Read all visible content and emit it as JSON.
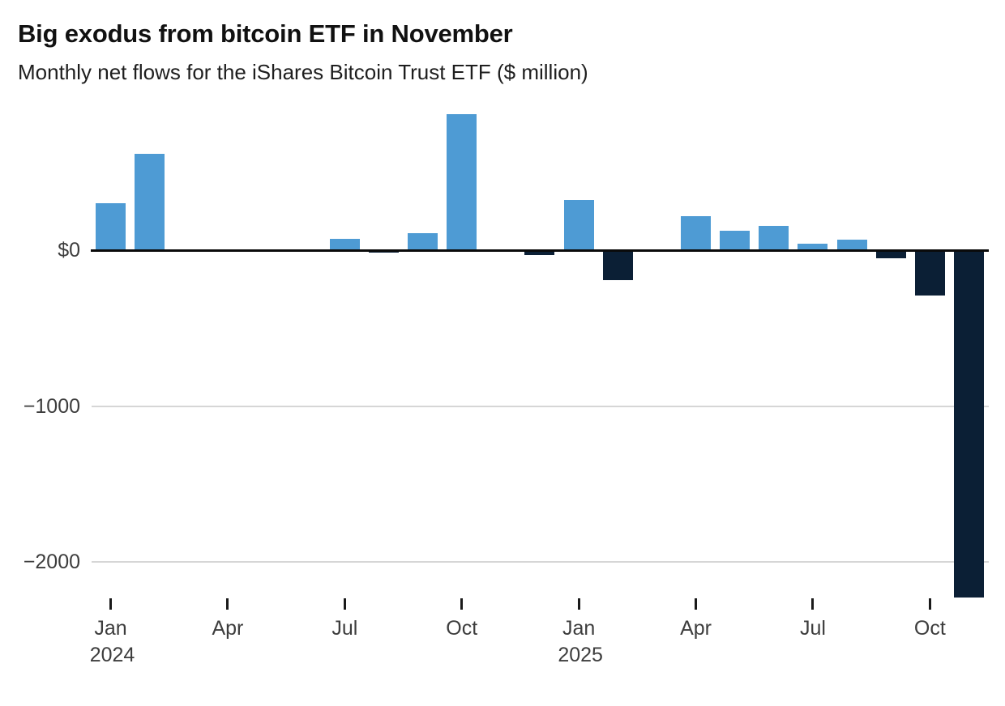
{
  "header": {
    "title": "Big exodus from bitcoin ETF in November",
    "subtitle": "Monthly net flows for the iShares Bitcoin Trust ETF ($ million)"
  },
  "chart_data": {
    "type": "bar",
    "title": "Big exodus from bitcoin ETF in November",
    "subtitle": "Monthly net flows for the iShares Bitcoin Trust ETF ($ million)",
    "unit": "$ million",
    "categories": [
      "Jan 2024",
      "Feb 2024",
      "Mar 2024",
      "Apr 2024",
      "May 2024",
      "Jun 2024",
      "Jul 2024",
      "Aug 2024",
      "Sep 2024",
      "Oct 2024",
      "Nov 2024",
      "Dec 2024",
      "Jan 2025",
      "Feb 2025",
      "Mar 2025",
      "Apr 2025",
      "May 2025",
      "Jun 2025",
      "Jul 2025",
      "Aug 2025",
      "Sep 2025",
      "Oct 2025",
      "Nov 2025"
    ],
    "values": [
      300,
      620,
      0,
      0,
      0,
      0,
      75,
      -15,
      110,
      875,
      0,
      -30,
      320,
      -190,
      0,
      220,
      125,
      155,
      40,
      65,
      -50,
      -290,
      -2230
    ],
    "ylim": [
      -2330,
      900
    ],
    "grid": "horizontal",
    "legend": null,
    "yticks": [
      {
        "value": 0,
        "label": "$0"
      },
      {
        "value": -1000,
        "label": "−1000"
      },
      {
        "value": -2000,
        "label": "−2000"
      }
    ],
    "xticks": [
      {
        "index": 0,
        "label": "Jan",
        "year": "2024"
      },
      {
        "index": 3,
        "label": "Apr",
        "year": ""
      },
      {
        "index": 6,
        "label": "Jul",
        "year": ""
      },
      {
        "index": 9,
        "label": "Oct",
        "year": ""
      },
      {
        "index": 12,
        "label": "Jan",
        "year": "2025"
      },
      {
        "index": 15,
        "label": "Apr",
        "year": ""
      },
      {
        "index": 18,
        "label": "Jul",
        "year": ""
      },
      {
        "index": 21,
        "label": "Oct",
        "year": ""
      }
    ],
    "colors": {
      "positive": "#4E9BD4",
      "negative": "#0B1F35",
      "gridline": "#D6D6D6",
      "zero_line": "#0A0A0A",
      "axis_text": "#3D3D3D"
    }
  }
}
